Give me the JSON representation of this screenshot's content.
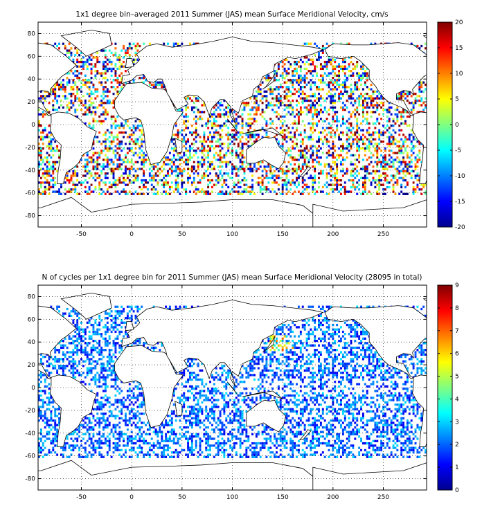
{
  "chart_data": [
    {
      "type": "heatmap",
      "title": "1x1 degree bin–averaged 2011 Summer (JAS) mean Surface Meridional Velocity, cm/s",
      "xlabel": "",
      "ylabel": "",
      "xlim": [
        -93,
        293
      ],
      "ylim": [
        -90,
        90
      ],
      "x_ticks": [
        -50,
        0,
        50,
        100,
        150,
        200,
        250
      ],
      "y_ticks": [
        -80,
        -60,
        -40,
        -20,
        0,
        20,
        40,
        60,
        80
      ],
      "grid": true,
      "colorbar": {
        "min": -20,
        "max": 20,
        "ticks": [
          -20,
          -15,
          -10,
          -5,
          0,
          5,
          10,
          15,
          20
        ],
        "colormap": "jet"
      }
    },
    {
      "type": "heatmap",
      "title": "N of cycles per 1x1 degree bin for 2011 Summer (JAS) mean Surface Meridional Velocity (28095 in total)",
      "xlabel": "",
      "ylabel": "",
      "xlim": [
        -93,
        293
      ],
      "ylim": [
        -90,
        90
      ],
      "x_ticks": [
        -50,
        0,
        50,
        100,
        150,
        200,
        250
      ],
      "y_ticks": [
        -80,
        -60,
        -40,
        -20,
        0,
        20,
        40,
        60,
        80
      ],
      "grid": true,
      "colorbar": {
        "min": 0,
        "max": 9,
        "ticks": [
          0,
          1,
          2,
          3,
          4,
          5,
          6,
          7,
          8,
          9
        ],
        "colormap": "jet"
      }
    }
  ]
}
